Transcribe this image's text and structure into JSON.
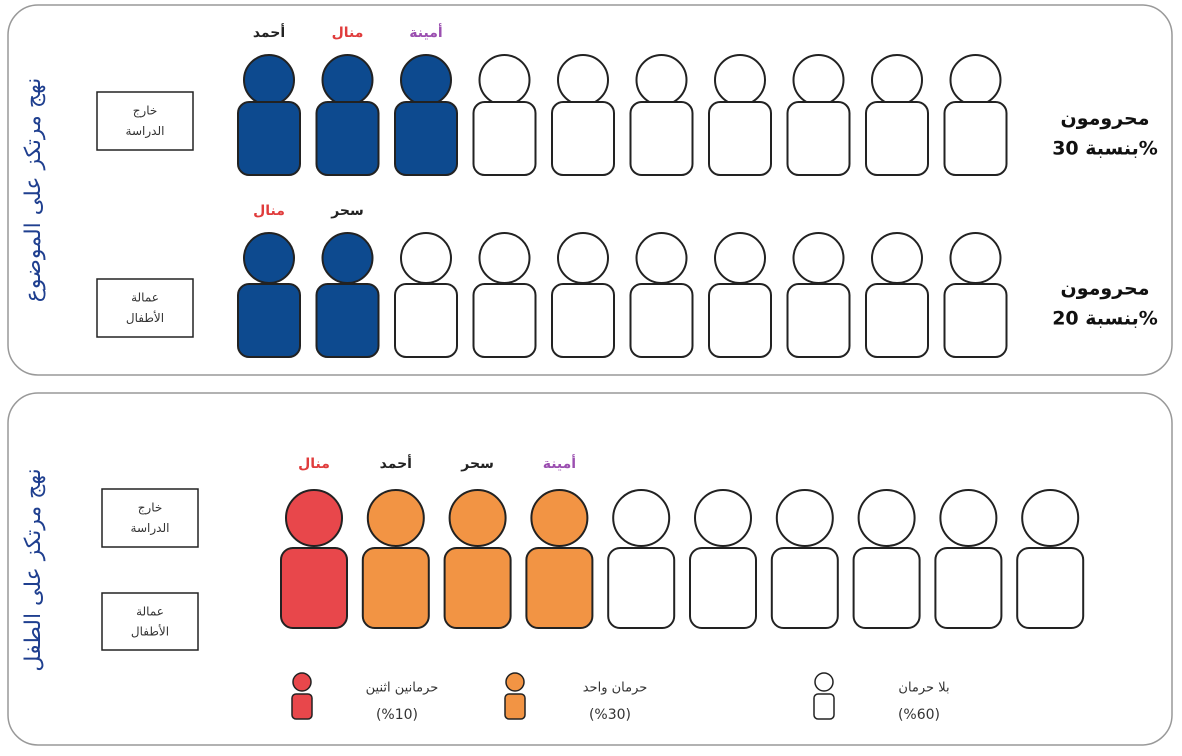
{
  "panels": [
    {
      "side_title": "نهج مرتكز على الموضوع",
      "rows": [
        {
          "box": [
            "خارج",
            "الدراسة"
          ],
          "label": [
            "محرومون",
            "بنسبة 30%"
          ],
          "names": [
            {
              "text": "أحمد",
              "color": "#222222"
            },
            {
              "text": "منال",
              "color": "#e03c3c"
            },
            {
              "text": "أمينة",
              "color": "#9b4fb0"
            }
          ],
          "figures": [
            "#0d4a8f",
            "#0d4a8f",
            "#0d4a8f",
            "#ffffff",
            "#ffffff",
            "#ffffff",
            "#ffffff",
            "#ffffff",
            "#ffffff",
            "#ffffff"
          ]
        },
        {
          "box": [
            "عمالة",
            "الأطفال"
          ],
          "label": [
            "محرومون",
            "بنسبة 20%"
          ],
          "names": [
            {
              "text": "منال",
              "color": "#e03c3c"
            },
            {
              "text": "سحر",
              "color": "#222222"
            }
          ],
          "figures": [
            "#0d4a8f",
            "#0d4a8f",
            "#ffffff",
            "#ffffff",
            "#ffffff",
            "#ffffff",
            "#ffffff",
            "#ffffff",
            "#ffffff",
            "#ffffff"
          ]
        }
      ]
    },
    {
      "side_title": "نهج مرتكز على الطفل",
      "boxes": [
        [
          "خارج",
          "الدراسة"
        ],
        [
          "عمالة",
          "الأطفال"
        ]
      ],
      "names": [
        {
          "text": "منال",
          "color": "#e03c3c"
        },
        {
          "text": "أحمد",
          "color": "#222222"
        },
        {
          "text": "سحر",
          "color": "#222222"
        },
        {
          "text": "أمينة",
          "color": "#9b4fb0"
        }
      ],
      "figures": [
        "#e8474b",
        "#f29444",
        "#f29444",
        "#f29444",
        "#ffffff",
        "#ffffff",
        "#ffffff",
        "#ffffff",
        "#ffffff",
        "#ffffff"
      ],
      "legend": [
        {
          "text": "حرمانين اثنين",
          "share": "(%10)",
          "color": "#e8474b"
        },
        {
          "text": "حرمان واحد",
          "share": "(%30)",
          "color": "#f29444"
        },
        {
          "text": "بلا حرمان",
          "share": "(%60)",
          "color": "#ffffff"
        }
      ]
    }
  ]
}
